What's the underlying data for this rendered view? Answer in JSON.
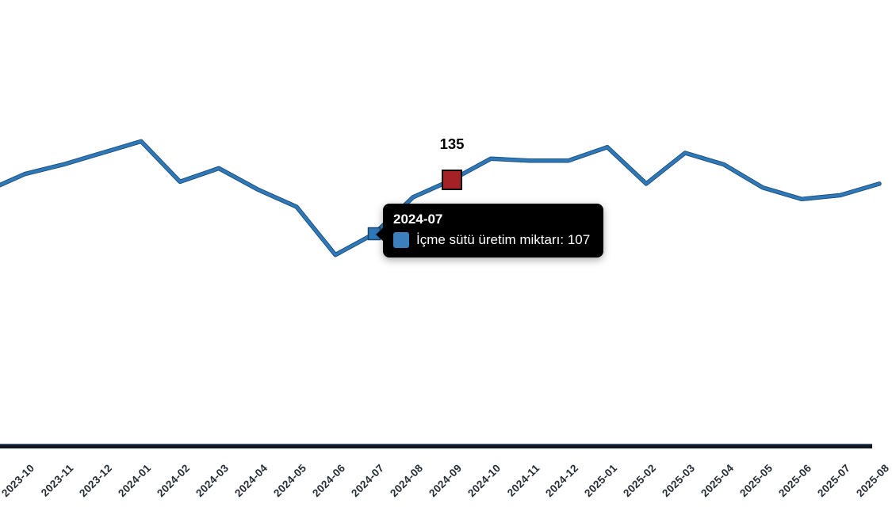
{
  "chart_data": {
    "type": "line",
    "title": "",
    "xlabel": "",
    "ylabel": "",
    "categories": [
      "2023-10",
      "2023-11",
      "2023-12",
      "2024-01",
      "2024-02",
      "2024-03",
      "2024-04",
      "2024-05",
      "2024-06",
      "2024-07",
      "2024-08",
      "2024-09",
      "2024-10",
      "2024-11",
      "2024-12",
      "2025-01",
      "2025-02",
      "2025-03",
      "2025-04",
      "2025-05",
      "2025-06",
      "2025-07",
      "2025-08"
    ],
    "series": [
      {
        "name": "İçme sütü üretim miktarı",
        "values": [
          138,
          143,
          149,
          155,
          134,
          141,
          130,
          121,
          96,
          107,
          126,
          135,
          146,
          145,
          145,
          152,
          133,
          149,
          143,
          131,
          125,
          127,
          133
        ]
      }
    ],
    "left_edge_entry_value": 129,
    "grid": "off",
    "y_axis_visible": false,
    "x_labels_rotation_deg": -45,
    "highlight_point": {
      "category": "2024-09",
      "value": 135,
      "label": "135"
    },
    "hovered_point": {
      "category": "2024-07",
      "value": 107
    },
    "colors": {
      "line": "#2f79b8",
      "line_shadow": "#1c4f7c",
      "hover_marker_fill": "#2e78b7",
      "hover_marker_stroke": "#16456b",
      "highlight_marker_fill": "#a42125",
      "highlight_marker_stroke": "#0a0a0a",
      "axis_line": "#11161c",
      "axis_line_top_tint": "#3a5875",
      "x_label_color": "#262d35"
    }
  },
  "tooltip": {
    "title": "2024-07",
    "series": "İçme sütü üretim miktarı",
    "value": "107",
    "text": "İçme sütü üretim miktarı: 107",
    "swatch_color": "#3b80bd",
    "background": "#000000",
    "text_color": "#ffffff"
  },
  "value_label": "135"
}
